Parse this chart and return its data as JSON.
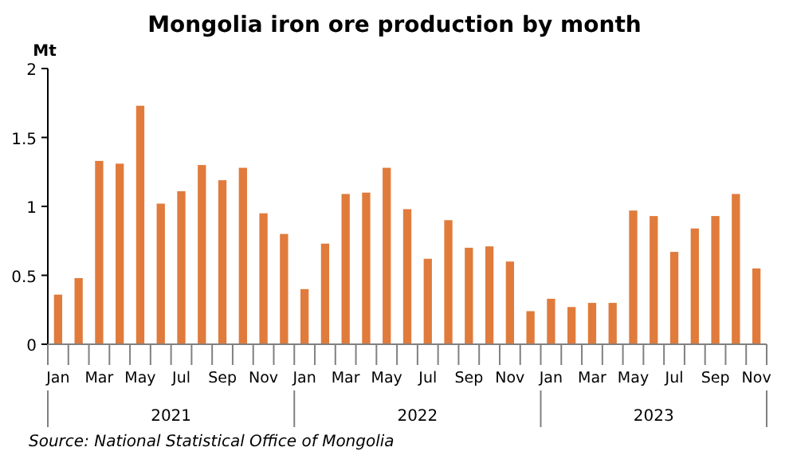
{
  "chart_data": {
    "type": "bar",
    "title": "Mongolia iron ore production by month",
    "ylabel": "Mt",
    "categories": [
      "Jan",
      null,
      "Mar",
      null,
      "May",
      null,
      "Jul",
      null,
      "Sep",
      null,
      "Nov",
      null,
      "Jan",
      null,
      "Mar",
      null,
      "May",
      null,
      "Jul",
      null,
      "Sep",
      null,
      "Nov",
      null,
      "Jan",
      null,
      "Mar",
      null,
      "May",
      null,
      "Jul",
      null,
      "Sep",
      null,
      "Nov"
    ],
    "values": [
      0.36,
      0.48,
      1.33,
      1.31,
      1.73,
      1.02,
      1.11,
      1.3,
      1.19,
      1.28,
      0.95,
      0.8,
      0.4,
      0.73,
      1.09,
      1.1,
      1.28,
      0.98,
      0.62,
      0.9,
      0.7,
      0.71,
      0.6,
      0.24,
      0.33,
      0.27,
      0.3,
      0.3,
      0.97,
      0.93,
      0.67,
      0.84,
      0.93,
      1.09,
      0.55
    ],
    "color": "#e07b3c",
    "ylim": [
      0,
      2
    ],
    "yticks": [
      0,
      0.5,
      1,
      1.5,
      2
    ],
    "grid": false,
    "annotations": [
      "2021",
      "2022",
      "2023",
      "Source:  National Statistical Office of Mongolia"
    ]
  }
}
